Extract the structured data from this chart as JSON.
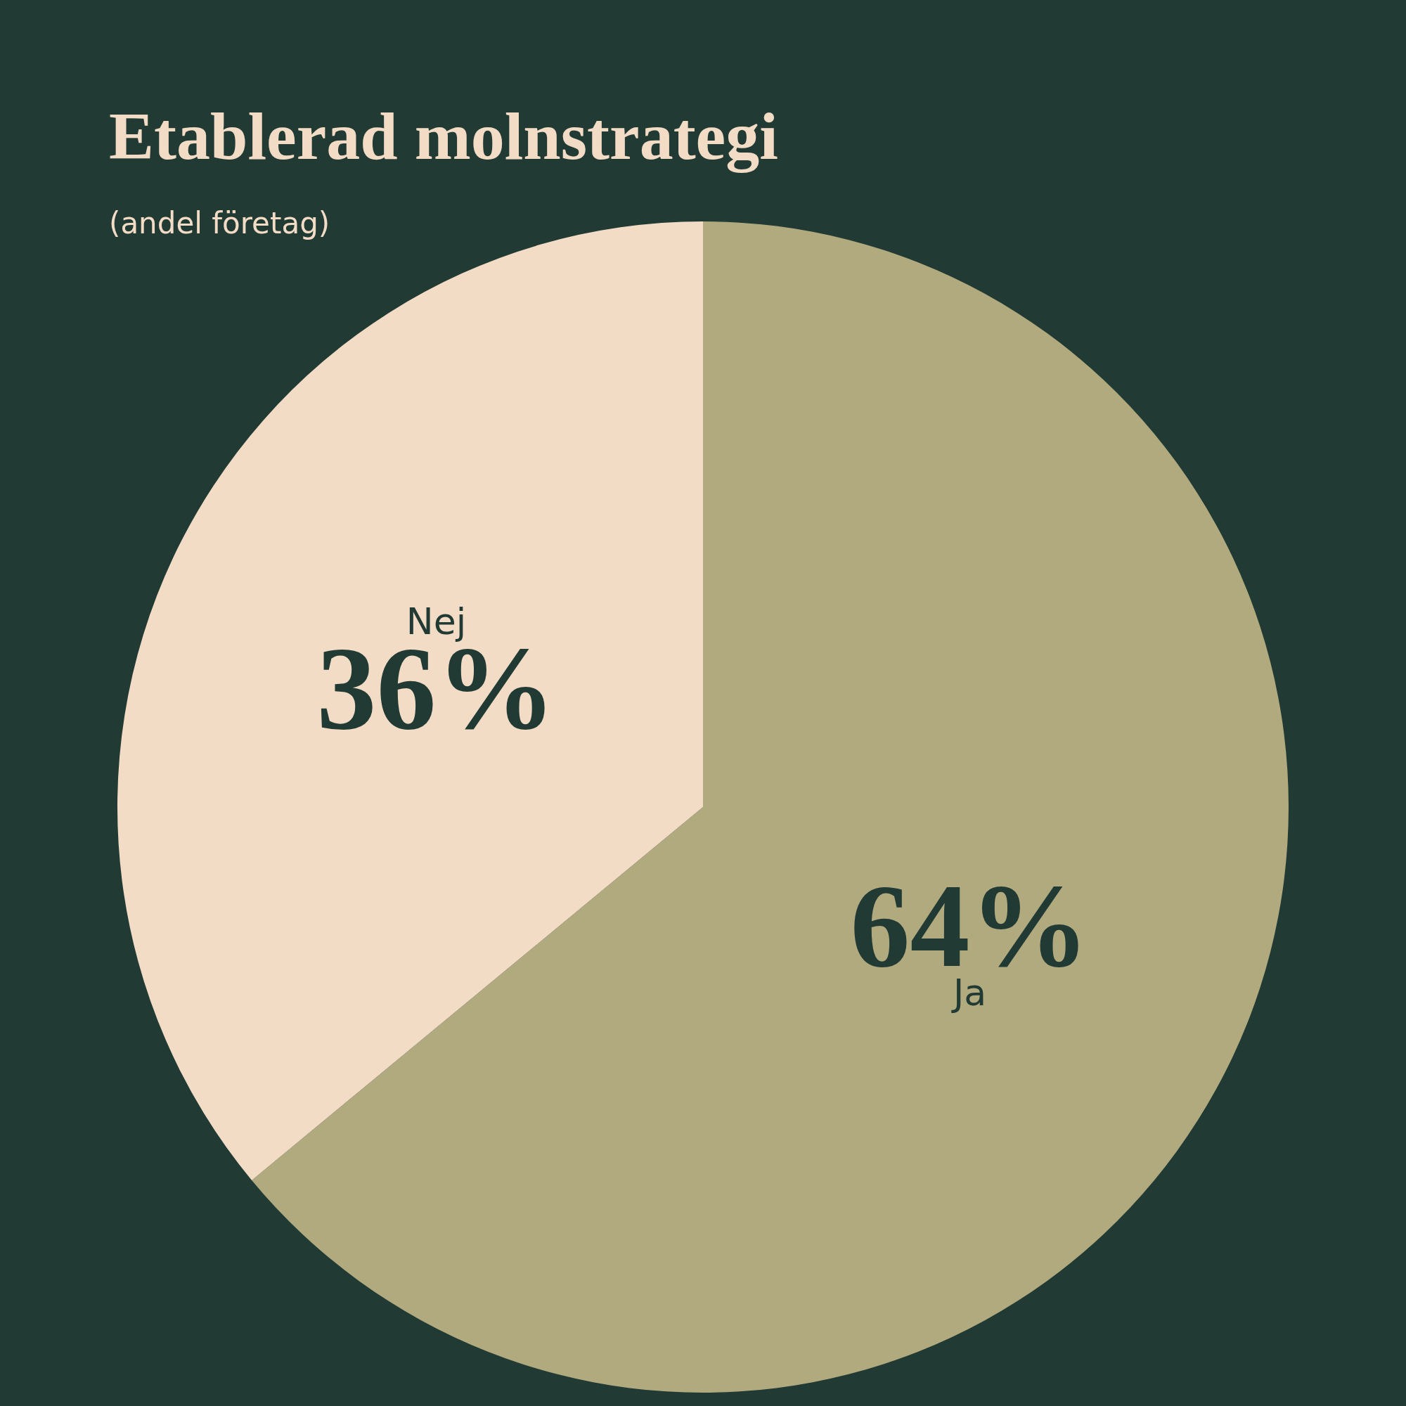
{
  "chart_data": {
    "type": "pie",
    "title": "Etablerad molnstrategi",
    "subtitle": "(andel företag)",
    "categories": [
      "Ja",
      "Nej"
    ],
    "values": [
      64,
      36
    ],
    "colors": [
      "#b1aa7f",
      "#f3dcc6"
    ],
    "value_labels": [
      "64%",
      "36%"
    ],
    "legend": false
  }
}
